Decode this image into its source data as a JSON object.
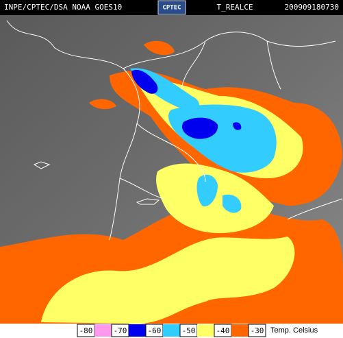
{
  "header": {
    "source": "INPE/CPTEC/DSA NOAA GOES10",
    "logo": "CPTEC",
    "product": "T_REALCE",
    "timestamp": "200909180730"
  },
  "legend": {
    "labels": [
      "-80",
      "-70",
      "-60",
      "-50",
      "-40",
      "-30"
    ],
    "colors": [
      "#ff99ee",
      "#0000ee",
      "#33ccff",
      "#ffff66",
      "#ff6600"
    ],
    "unit": "Temp. Celsius"
  }
}
